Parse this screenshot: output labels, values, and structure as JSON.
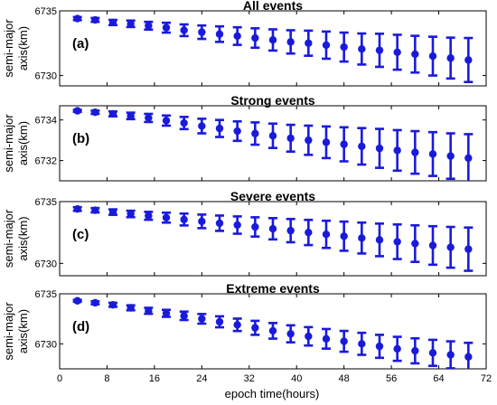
{
  "chart_data": {
    "type": "scatter",
    "xlabel": "epoch time(hours)",
    "xlim": [
      0,
      72
    ],
    "xticks": [
      0,
      8,
      16,
      24,
      32,
      40,
      48,
      56,
      64,
      72
    ],
    "x": [
      3,
      6,
      9,
      12,
      15,
      18,
      21,
      24,
      27,
      30,
      33,
      36,
      39,
      42,
      45,
      48,
      51,
      54,
      57,
      60,
      63,
      66,
      69
    ],
    "panels": [
      {
        "label": "(a)",
        "title": "All events",
        "ylabel_lines": [
          "semi-major",
          "axis(km)"
        ],
        "ylim": [
          6729.2,
          6735
        ],
        "yticks": [
          6730,
          6735
        ],
        "y": [
          6734.4,
          6734.3,
          6734.1,
          6734.0,
          6733.85,
          6733.7,
          6733.5,
          6733.35,
          6733.2,
          6733.05,
          6732.9,
          6732.75,
          6732.6,
          6732.5,
          6732.35,
          6732.2,
          6732.05,
          6731.95,
          6731.8,
          6731.65,
          6731.5,
          6731.35,
          6731.2
        ],
        "err": [
          0.12,
          0.15,
          0.2,
          0.25,
          0.3,
          0.38,
          0.45,
          0.52,
          0.6,
          0.68,
          0.75,
          0.82,
          0.9,
          0.97,
          1.05,
          1.12,
          1.2,
          1.28,
          1.35,
          1.42,
          1.5,
          1.58,
          1.7
        ]
      },
      {
        "label": "(b)",
        "title": "Strong events",
        "ylabel_lines": [
          "semi-major",
          "axis(km)"
        ],
        "ylim": [
          6731,
          6734.7
        ],
        "yticks": [
          6732,
          6734
        ],
        "y": [
          6734.45,
          6734.38,
          6734.3,
          6734.2,
          6734.1,
          6733.97,
          6733.85,
          6733.7,
          6733.58,
          6733.45,
          6733.33,
          6733.22,
          6733.1,
          6733.0,
          6732.9,
          6732.8,
          6732.7,
          6732.6,
          6732.5,
          6732.4,
          6732.32,
          6732.22,
          6732.12
        ],
        "err": [
          0.05,
          0.08,
          0.12,
          0.16,
          0.2,
          0.25,
          0.3,
          0.36,
          0.42,
          0.48,
          0.55,
          0.6,
          0.66,
          0.72,
          0.78,
          0.84,
          0.9,
          0.96,
          1.0,
          1.05,
          1.08,
          1.12,
          1.18
        ]
      },
      {
        "label": "(c)",
        "title": "Severe events",
        "ylabel_lines": [
          "semi-major",
          "axis(km)"
        ],
        "ylim": [
          6729,
          6735
        ],
        "yticks": [
          6730,
          6735
        ],
        "y": [
          6734.4,
          6734.3,
          6734.15,
          6734.0,
          6733.85,
          6733.7,
          6733.55,
          6733.4,
          6733.25,
          6733.1,
          6732.95,
          6732.8,
          6732.65,
          6732.5,
          6732.35,
          6732.2,
          6732.05,
          6731.9,
          6731.75,
          6731.6,
          6731.45,
          6731.3,
          6731.15
        ],
        "err": [
          0.15,
          0.18,
          0.22,
          0.26,
          0.32,
          0.4,
          0.48,
          0.55,
          0.62,
          0.7,
          0.78,
          0.86,
          0.94,
          1.02,
          1.1,
          1.18,
          1.25,
          1.32,
          1.4,
          1.48,
          1.56,
          1.65,
          1.75
        ]
      },
      {
        "label": "(d)",
        "title": "Extreme events",
        "ylabel_lines": [
          "semi-major",
          "axis(km)"
        ],
        "ylim": [
          6727.5,
          6735
        ],
        "yticks": [
          6730,
          6735
        ],
        "y": [
          6734.3,
          6734.1,
          6733.9,
          6733.6,
          6733.3,
          6733.05,
          6732.8,
          6732.5,
          6732.2,
          6731.9,
          6731.6,
          6731.3,
          6731.0,
          6730.75,
          6730.5,
          6730.25,
          6730.0,
          6729.75,
          6729.5,
          6729.3,
          6729.1,
          6728.9,
          6728.7
        ],
        "err": [
          0.1,
          0.15,
          0.2,
          0.25,
          0.3,
          0.35,
          0.42,
          0.48,
          0.55,
          0.62,
          0.7,
          0.78,
          0.85,
          0.92,
          0.98,
          1.04,
          1.1,
          1.15,
          1.2,
          1.25,
          1.3,
          1.35,
          1.4
        ]
      }
    ]
  },
  "colors": {
    "series": "#1a1adb",
    "axis": "#000000"
  }
}
